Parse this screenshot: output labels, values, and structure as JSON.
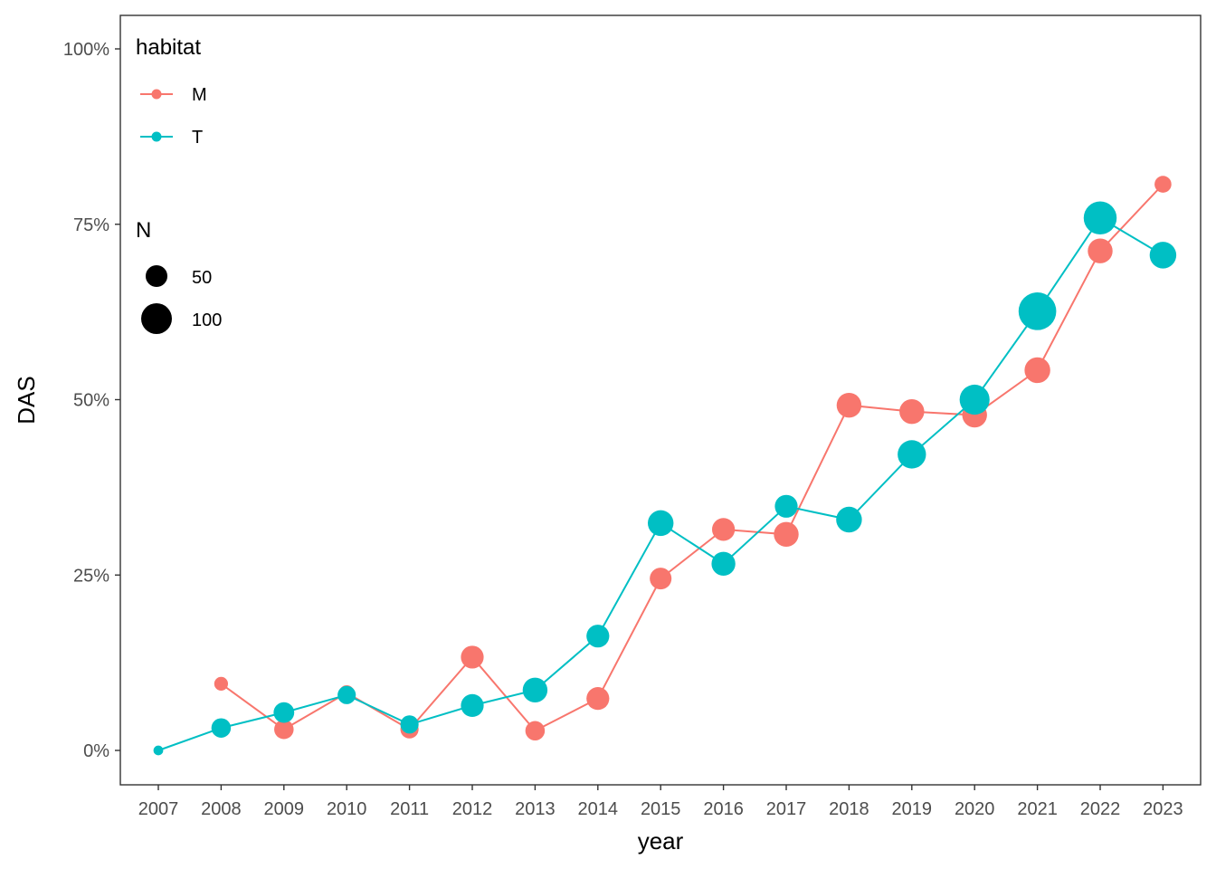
{
  "chart_data": {
    "type": "line",
    "xlabel": "year",
    "ylabel": "DAS",
    "ylim": [
      -0.1,
      1.05
    ],
    "y_ticks": [
      0,
      0.25,
      0.5,
      0.75,
      1.0
    ],
    "y_tick_labels": [
      "0%",
      "25%",
      "50%",
      "75%",
      "100%"
    ],
    "x": [
      2007,
      2008,
      2009,
      2010,
      2011,
      2012,
      2013,
      2014,
      2015,
      2016,
      2017,
      2018,
      2019,
      2020,
      2021,
      2022,
      2023
    ],
    "x_tick_labels": [
      "2007",
      "2008",
      "2009",
      "2010",
      "2011",
      "2012",
      "2013",
      "2014",
      "2015",
      "2016",
      "2017",
      "2018",
      "2019",
      "2020",
      "2021",
      "2022",
      "2023"
    ],
    "grid": false,
    "legend_position": "top-left, inside",
    "color_legend": {
      "title": "habitat",
      "entries": [
        {
          "label": "M",
          "color": "#F8766D"
        },
        {
          "label": "T",
          "color": "#00BFC4"
        }
      ]
    },
    "size_legend": {
      "title": "N",
      "entries": [
        {
          "label": "50",
          "value": 50
        },
        {
          "label": "100",
          "value": 100
        }
      ]
    },
    "series": [
      {
        "name": "M",
        "color": "#F8766D",
        "points": [
          {
            "x": 2008,
            "y": 0.095,
            "n": 20
          },
          {
            "x": 2009,
            "y": 0.03,
            "n": 40
          },
          {
            "x": 2010,
            "y": 0.082,
            "n": 25
          },
          {
            "x": 2011,
            "y": 0.03,
            "n": 35
          },
          {
            "x": 2012,
            "y": 0.133,
            "n": 55
          },
          {
            "x": 2013,
            "y": 0.028,
            "n": 40
          },
          {
            "x": 2014,
            "y": 0.074,
            "n": 55
          },
          {
            "x": 2015,
            "y": 0.245,
            "n": 50
          },
          {
            "x": 2016,
            "y": 0.315,
            "n": 55
          },
          {
            "x": 2017,
            "y": 0.308,
            "n": 65
          },
          {
            "x": 2018,
            "y": 0.492,
            "n": 65
          },
          {
            "x": 2019,
            "y": 0.483,
            "n": 65
          },
          {
            "x": 2020,
            "y": 0.478,
            "n": 65
          },
          {
            "x": 2021,
            "y": 0.542,
            "n": 70
          },
          {
            "x": 2022,
            "y": 0.712,
            "n": 65
          },
          {
            "x": 2023,
            "y": 0.807,
            "n": 30
          }
        ]
      },
      {
        "name": "T",
        "color": "#00BFC4",
        "points": [
          {
            "x": 2007,
            "y": 0.0,
            "n": 10
          },
          {
            "x": 2008,
            "y": 0.032,
            "n": 40
          },
          {
            "x": 2009,
            "y": 0.054,
            "n": 45
          },
          {
            "x": 2010,
            "y": 0.079,
            "n": 35
          },
          {
            "x": 2011,
            "y": 0.037,
            "n": 35
          },
          {
            "x": 2012,
            "y": 0.064,
            "n": 55
          },
          {
            "x": 2013,
            "y": 0.086,
            "n": 65
          },
          {
            "x": 2014,
            "y": 0.163,
            "n": 55
          },
          {
            "x": 2015,
            "y": 0.324,
            "n": 70
          },
          {
            "x": 2016,
            "y": 0.266,
            "n": 60
          },
          {
            "x": 2017,
            "y": 0.348,
            "n": 55
          },
          {
            "x": 2018,
            "y": 0.329,
            "n": 70
          },
          {
            "x": 2019,
            "y": 0.422,
            "n": 85
          },
          {
            "x": 2020,
            "y": 0.5,
            "n": 95
          },
          {
            "x": 2021,
            "y": 0.626,
            "n": 150
          },
          {
            "x": 2022,
            "y": 0.759,
            "n": 115
          },
          {
            "x": 2023,
            "y": 0.706,
            "n": 75
          }
        ]
      }
    ]
  }
}
